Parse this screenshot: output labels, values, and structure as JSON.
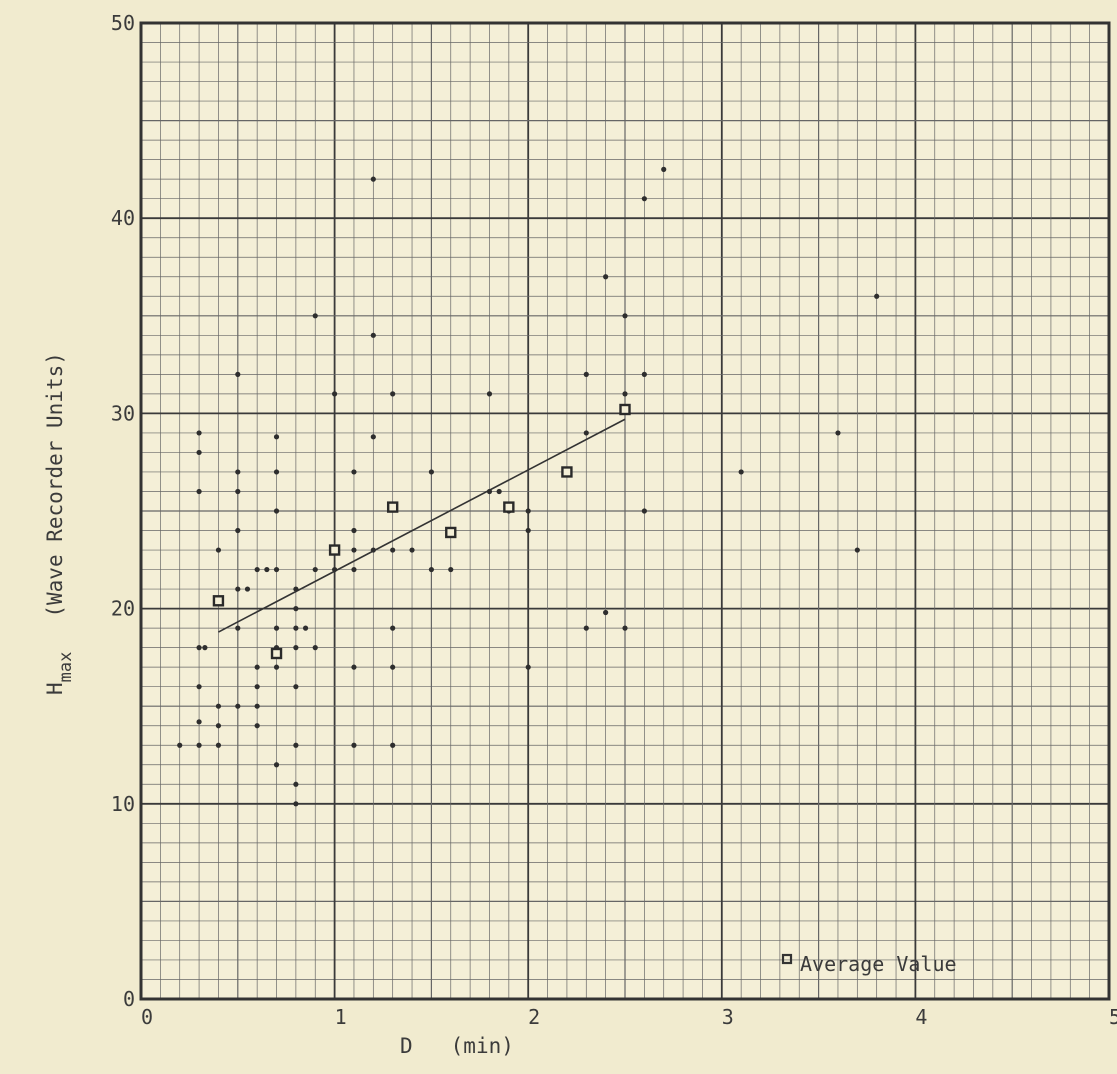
{
  "chart_data": {
    "type": "scatter",
    "title": "",
    "xlabel_var": "D",
    "xlabel_unit": "(min)",
    "ylabel_var": "H",
    "ylabel_sub": "max",
    "ylabel_unit": "(Wave Recorder Units)",
    "xlim": [
      0,
      5
    ],
    "ylim": [
      0,
      50
    ],
    "x_ticks": [
      "0",
      "1",
      "2",
      "3",
      "4",
      "5"
    ],
    "y_ticks": [
      "0",
      "10",
      "20",
      "30",
      "40",
      "50"
    ],
    "grid": true,
    "legend_position": "bottom-right",
    "series": [
      {
        "marker": "dot",
        "points": [
          [
            0.2,
            13
          ],
          [
            0.3,
            13
          ],
          [
            0.3,
            14.2
          ],
          [
            0.3,
            16
          ],
          [
            0.3,
            18
          ],
          [
            0.3,
            26
          ],
          [
            0.3,
            28
          ],
          [
            0.3,
            29
          ],
          [
            0.33,
            18
          ],
          [
            0.4,
            13
          ],
          [
            0.4,
            14
          ],
          [
            0.4,
            15
          ],
          [
            0.4,
            23
          ],
          [
            0.5,
            15
          ],
          [
            0.5,
            19
          ],
          [
            0.5,
            21
          ],
          [
            0.5,
            24
          ],
          [
            0.5,
            26
          ],
          [
            0.5,
            27
          ],
          [
            0.5,
            32
          ],
          [
            0.55,
            21
          ],
          [
            0.6,
            14
          ],
          [
            0.6,
            15
          ],
          [
            0.6,
            16
          ],
          [
            0.6,
            17
          ],
          [
            0.6,
            22
          ],
          [
            0.65,
            22
          ],
          [
            0.7,
            12
          ],
          [
            0.7,
            17
          ],
          [
            0.7,
            18
          ],
          [
            0.7,
            19
          ],
          [
            0.7,
            22
          ],
          [
            0.7,
            25
          ],
          [
            0.7,
            27
          ],
          [
            0.7,
            28.8
          ],
          [
            0.8,
            10
          ],
          [
            0.8,
            11
          ],
          [
            0.8,
            13
          ],
          [
            0.8,
            16
          ],
          [
            0.8,
            18
          ],
          [
            0.8,
            19
          ],
          [
            0.8,
            20
          ],
          [
            0.8,
            21
          ],
          [
            0.85,
            19
          ],
          [
            0.9,
            18
          ],
          [
            0.9,
            22
          ],
          [
            0.9,
            35
          ],
          [
            1.0,
            22
          ],
          [
            1.0,
            31
          ],
          [
            1.1,
            13
          ],
          [
            1.1,
            17
          ],
          [
            1.1,
            22
          ],
          [
            1.1,
            23
          ],
          [
            1.1,
            24
          ],
          [
            1.1,
            27
          ],
          [
            1.2,
            23
          ],
          [
            1.2,
            28.8
          ],
          [
            1.2,
            34
          ],
          [
            1.2,
            42
          ],
          [
            1.3,
            13
          ],
          [
            1.3,
            17
          ],
          [
            1.3,
            19
          ],
          [
            1.3,
            23
          ],
          [
            1.3,
            31
          ],
          [
            1.4,
            23
          ],
          [
            1.5,
            22
          ],
          [
            1.5,
            27
          ],
          [
            1.6,
            22
          ],
          [
            1.8,
            26
          ],
          [
            1.8,
            31
          ],
          [
            1.85,
            26
          ],
          [
            1.9,
            25
          ],
          [
            2.0,
            17
          ],
          [
            2.0,
            24
          ],
          [
            2.0,
            25
          ],
          [
            2.3,
            19
          ],
          [
            2.3,
            29
          ],
          [
            2.3,
            32
          ],
          [
            2.4,
            19.8
          ],
          [
            2.4,
            37
          ],
          [
            2.5,
            19
          ],
          [
            2.5,
            31
          ],
          [
            2.5,
            35
          ],
          [
            2.6,
            25
          ],
          [
            2.6,
            32
          ],
          [
            2.6,
            41
          ],
          [
            2.7,
            42.5
          ],
          [
            3.1,
            27
          ],
          [
            3.6,
            29
          ],
          [
            3.7,
            23
          ],
          [
            3.8,
            36
          ]
        ]
      },
      {
        "name": "Average Value",
        "marker": "square",
        "points": [
          [
            0.4,
            20.4
          ],
          [
            0.7,
            17.7
          ],
          [
            1.0,
            23
          ],
          [
            1.3,
            25.2
          ],
          [
            1.6,
            23.9
          ],
          [
            1.9,
            25.2
          ],
          [
            2.2,
            27
          ],
          [
            2.5,
            30.2
          ]
        ]
      }
    ],
    "trend_line": {
      "from": [
        0.4,
        18.8
      ],
      "to": [
        2.5,
        29.7
      ]
    }
  }
}
